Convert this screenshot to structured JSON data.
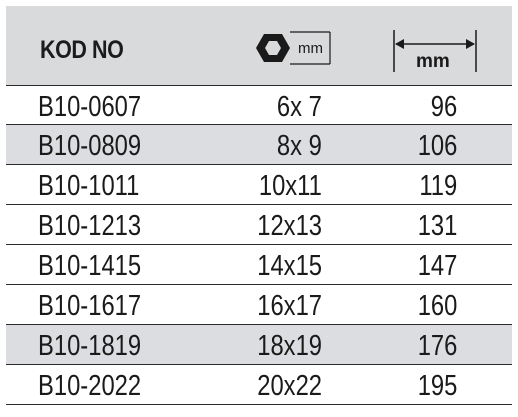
{
  "header": {
    "code_label": "KOD NO",
    "hex_unit": "mm",
    "length_unit": "mm"
  },
  "rows": [
    {
      "code": "B10-0607",
      "size": "6x 7",
      "length": "96"
    },
    {
      "code": "B10-0809",
      "size": "8x 9",
      "length": "106"
    },
    {
      "code": "B10-1011",
      "size": "10x11",
      "length": "119"
    },
    {
      "code": "B10-1213",
      "size": "12x13",
      "length": "131"
    },
    {
      "code": "B10-1415",
      "size": "14x15",
      "length": "147"
    },
    {
      "code": "B10-1617",
      "size": "16x17",
      "length": "160"
    },
    {
      "code": "B10-1819",
      "size": "18x19",
      "length": "176"
    },
    {
      "code": "B10-2022",
      "size": "20x22",
      "length": "195"
    }
  ],
  "colors": {
    "header_bg": "#d9dadc",
    "shaded_row_bg": "#dcdde0",
    "rule": "#2a2a2a"
  }
}
